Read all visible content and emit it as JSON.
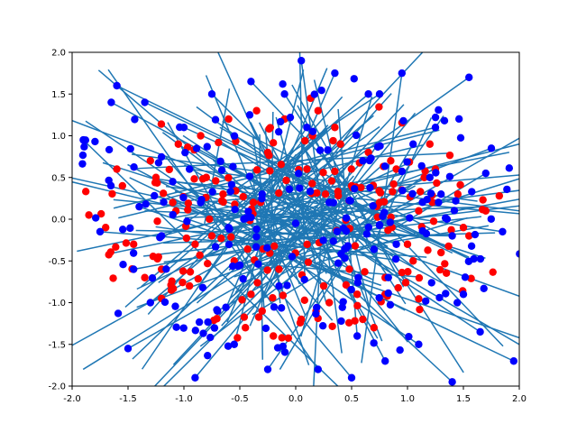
{
  "chart_data": {
    "type": "scatter",
    "title": "",
    "xlabel": "",
    "ylabel": "",
    "xlim": [
      -2.0,
      2.0
    ],
    "ylim": [
      -2.0,
      2.0
    ],
    "grid": false,
    "legend": "none",
    "xticks": [
      "-2.0",
      "-1.5",
      "-1.0",
      "-0.5",
      "0.0",
      "0.5",
      "1.0",
      "1.5",
      "2.0"
    ],
    "yticks": [
      "-2.0",
      "-1.5",
      "-1.0",
      "-0.5",
      "0.0",
      "0.5",
      "1.0",
      "1.5",
      "2.0"
    ],
    "colors": {
      "red_points": "#ff0000",
      "blue_points": "#0000ff",
      "lines": "#1f77b4"
    },
    "series": [
      {
        "marker": "red",
        "x": [
          -1.85,
          -1.7,
          -1.55,
          -1.45,
          -1.3,
          -1.2,
          -1.05,
          -0.95,
          -0.85,
          -0.7,
          -0.6,
          -0.45,
          -0.35,
          -0.2,
          -0.1,
          0.05,
          0.15,
          0.3,
          0.4,
          0.55,
          0.65,
          0.8,
          0.9,
          1.05,
          1.15,
          1.3,
          1.45,
          1.55,
          1.7,
          -1.6,
          -1.35,
          -1.1,
          -0.8,
          -0.55,
          -0.25,
          0.25,
          0.5,
          0.75,
          1.0,
          1.25,
          1.5,
          -0.9,
          -0.65,
          -0.4,
          0.35,
          0.6,
          0.85,
          1.1,
          -1.25,
          -0.75,
          0.2,
          0.7,
          1.2,
          -0.3,
          0.1,
          0.45,
          -0.15,
          0.95
        ],
        "y": [
          0.05,
          -0.1,
          0.4,
          -0.3,
          0.7,
          -0.6,
          0.9,
          -0.8,
          1.0,
          -1.1,
          1.2,
          -1.3,
          1.3,
          -1.4,
          1.2,
          -1.2,
          1.0,
          -1.0,
          0.9,
          -0.9,
          0.8,
          -0.7,
          0.6,
          -0.5,
          0.5,
          -0.4,
          0.3,
          -0.2,
          0.1,
          0.6,
          -0.7,
          0.2,
          0.5,
          -0.5,
          0.8,
          -0.8,
          0.4,
          0.2,
          -0.3,
          0.6,
          -0.1,
          -0.3,
          0.3,
          -0.9,
          1.1,
          -1.2,
          0.7,
          0.1,
          0.5,
          -0.2,
          1.3,
          -1.3,
          0.9,
          -1.1,
          0.6,
          0.0,
          -0.6,
          0.35
        ]
      },
      {
        "marker": "blue",
        "x": [
          -1.9,
          -1.75,
          -1.6,
          -1.45,
          -1.35,
          -1.2,
          -1.0,
          -0.9,
          -0.75,
          -0.55,
          -0.4,
          -0.25,
          -0.1,
          0.05,
          0.2,
          0.35,
          0.5,
          0.65,
          0.8,
          0.95,
          1.1,
          1.25,
          1.4,
          1.55,
          1.7,
          1.85,
          1.95,
          1.75,
          1.5,
          1.2,
          0.9,
          0.6,
          0.3,
          0.0,
          -0.3,
          -0.6,
          -0.95,
          -1.3,
          -1.65,
          -1.5,
          -1.1,
          -0.7,
          0.1,
          0.55,
          1.05,
          1.4,
          1.65,
          -1.4,
          -0.85,
          0.45,
          1.3,
          -0.5,
          0.75
        ],
        "y": [
          0.95,
          -0.15,
          1.6,
          -0.6,
          1.4,
          -0.2,
          1.1,
          -1.9,
          1.5,
          -1.5,
          1.65,
          -1.8,
          1.5,
          1.9,
          -1.8,
          1.75,
          -1.9,
          1.5,
          -1.7,
          1.75,
          -1.5,
          1.1,
          -1.95,
          1.7,
          0.55,
          -0.15,
          -1.7,
          0.85,
          -0.9,
          0.5,
          -0.3,
          0.7,
          0.2,
          -0.05,
          0.3,
          -0.1,
          0.6,
          -1.0,
          1.4,
          -1.55,
          0.45,
          -1.1,
          1.1,
          -1.4,
          0.9,
          -0.2,
          -1.35,
          0.15,
          0.2,
          -0.35,
          0.3,
          -0.55,
          1.5
        ]
      }
    ],
    "segments_note": ""
  }
}
